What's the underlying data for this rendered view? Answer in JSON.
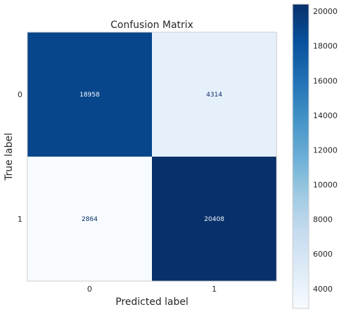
{
  "chart_data": {
    "type": "heatmap",
    "title": "Confusion Matrix",
    "xlabel": "Predicted label",
    "ylabel": "True label",
    "x_categories": [
      "0",
      "1"
    ],
    "y_categories": [
      "0",
      "1"
    ],
    "matrix": [
      [
        18958,
        4314
      ],
      [
        2864,
        20408
      ]
    ],
    "colorscale": "Blues",
    "colorbar": {
      "ticks": [
        "4000",
        "6000",
        "8000",
        "10000",
        "12000",
        "14000",
        "16000",
        "18000",
        "20000"
      ],
      "range": [
        2864,
        20408
      ]
    },
    "grid": false
  },
  "colors": {
    "scale_low": "#f7fbff",
    "scale_high": "#08306b",
    "text_on_dark": "#f7fbff",
    "text_on_light": "#08306b"
  }
}
